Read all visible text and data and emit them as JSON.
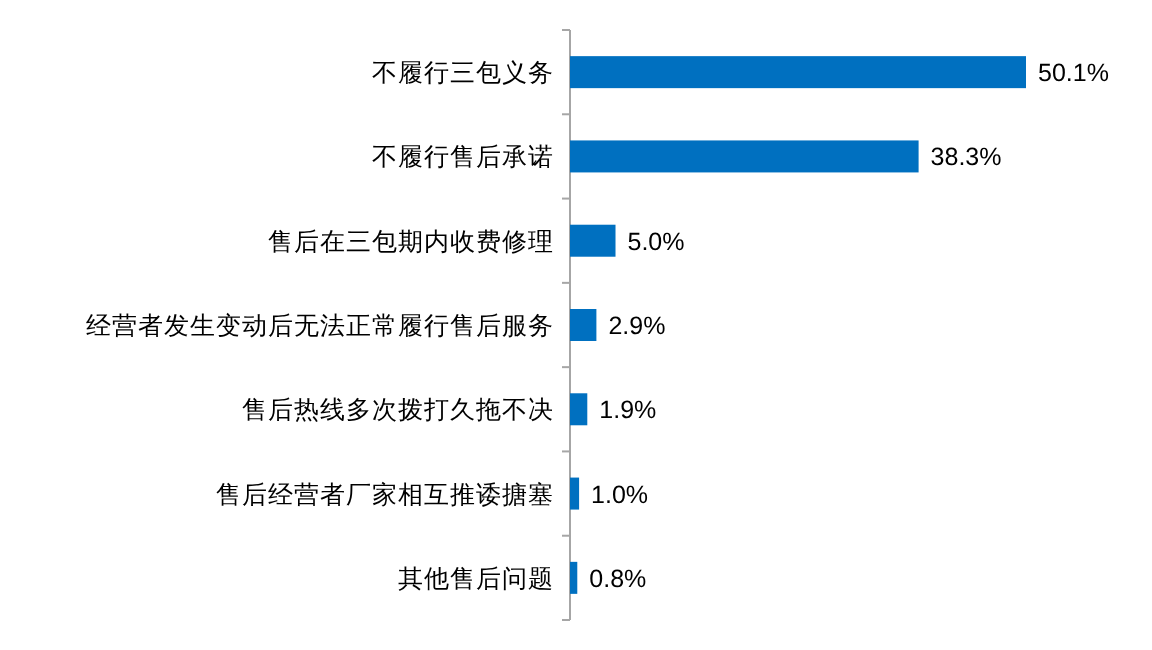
{
  "chart_data": {
    "type": "bar",
    "orientation": "horizontal",
    "categories": [
      "不履行三包义务",
      "不履行售后承诺",
      "售后在三包期内收费修理",
      "经营者发生变动后无法正常履行售后服务",
      "售后热线多次拨打久拖不决",
      "售后经营者厂家相互推诿搪塞",
      "其他售后问题"
    ],
    "values": [
      50.1,
      38.3,
      5.0,
      2.9,
      1.9,
      1.0,
      0.8
    ],
    "value_labels": [
      "50.1%",
      "38.3%",
      "5.0%",
      "2.9%",
      "1.9%",
      "1.0%",
      "0.8%"
    ],
    "color": "#0070c0"
  }
}
